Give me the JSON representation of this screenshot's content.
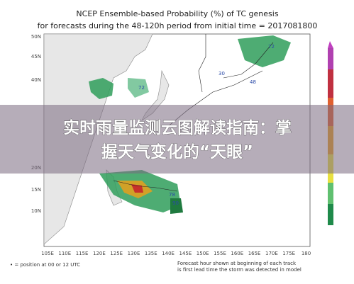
{
  "title": "NCEP Ensemble-based Probability (%) of TC genesis",
  "subtitle": "for forecasts during the 48-120h period from initial time = 2017081800",
  "lat_labels": [
    "50N",
    "45N",
    "40N",
    "20N",
    "15N",
    "10N"
  ],
  "lon_labels": [
    "105E",
    "110E",
    "115E",
    "120E",
    "125E",
    "130E",
    "135E",
    "140E",
    "145E",
    "150E",
    "155E",
    "160E",
    "165E",
    "170E",
    "175E",
    "180"
  ],
  "map_annotations": [
    "72",
    "30",
    "48",
    "72",
    "78",
    "90"
  ],
  "banner": {
    "line1": "实时雨量监测云图解读指南：掌",
    "line2": "握天气变化的“天眼”"
  },
  "footnotes": {
    "left": "• = position at 00 or 12 UTC",
    "right_line1": "Forecast hour shown at beginning of each track",
    "right_line2": "is first lead time the storm was detected in model"
  }
}
